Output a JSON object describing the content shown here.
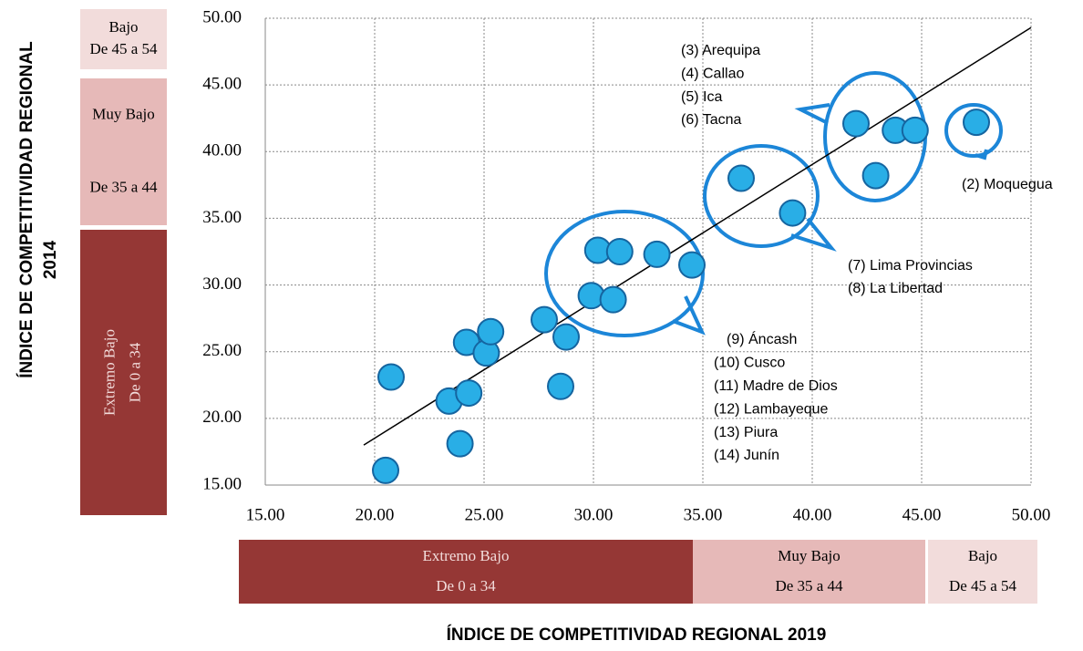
{
  "chart_data": {
    "type": "scatter",
    "x": [
      20.5,
      20.75,
      23.4,
      23.9,
      24.2,
      24.3,
      25.1,
      25.3,
      27.75,
      28.5,
      28.75,
      29.9,
      30.2,
      31.2,
      30.9,
      32.9,
      34.5,
      36.75,
      39.1,
      42.0,
      42.9,
      43.8,
      44.7,
      47.5
    ],
    "y": [
      16.1,
      23.1,
      21.3,
      18.1,
      25.7,
      21.9,
      24.9,
      26.5,
      27.4,
      22.4,
      26.1,
      29.2,
      32.6,
      32.5,
      28.9,
      32.3,
      31.5,
      38.0,
      35.4,
      42.1,
      38.2,
      41.6,
      41.6,
      42.2
    ],
    "color": "#29aee6",
    "trendline": {
      "x": [
        19.5,
        50
      ],
      "y": [
        18.0,
        49.3
      ]
    },
    "xlim": [
      15,
      50
    ],
    "ylim": [
      15,
      50
    ],
    "xticks": [
      {
        "value": 15,
        "label": "15.00"
      },
      {
        "value": 20,
        "label": "20.00"
      },
      {
        "value": 25,
        "label": "25.00"
      },
      {
        "value": 30,
        "label": "30.00"
      },
      {
        "value": 35,
        "label": "35.00"
      },
      {
        "value": 40,
        "label": "40.00"
      },
      {
        "value": 45,
        "label": "45.00"
      },
      {
        "value": 50,
        "label": "50.00"
      }
    ],
    "yticks": [
      {
        "value": 15,
        "label": "15.00"
      },
      {
        "value": 20,
        "label": "20.00"
      },
      {
        "value": 25,
        "label": "25.00"
      },
      {
        "value": 30,
        "label": "30.00"
      },
      {
        "value": 35,
        "label": "35.00"
      },
      {
        "value": 40,
        "label": "40.00"
      },
      {
        "value": 45,
        "label": "45.00"
      },
      {
        "value": 50,
        "label": "50.00"
      }
    ],
    "grid": true,
    "xlabel": "ÍNDICE DE COMPETITIVIDAD REGIONAL 2019",
    "ylabel": [
      "ÍNDICE DE COMPETITIVIDAD REGIONAL",
      "2014"
    ],
    "annotations": [
      [
        "(3) Arequipa",
        "(4) Callao",
        "(5) Ica",
        "(6) Tacna"
      ],
      [
        "(7) Lima Provincias",
        "(8) La Libertad"
      ],
      [
        "(9) Áncash",
        "(10) Cusco",
        "(11) Madre de Dios",
        "(12) Lambayeque",
        "(13) Piura",
        "(14) Junín"
      ],
      [
        "(2) Moquegua"
      ]
    ],
    "y_bands": [
      {
        "label": "Bajo",
        "range": "De 45 a 54"
      },
      {
        "label": "Muy Bajo",
        "range": "De 35 a 44"
      },
      {
        "label": "Extremo Bajo",
        "range": "De 0 a 34"
      }
    ],
    "x_bands": [
      {
        "label": "Extremo Bajo",
        "range": "De 0 a 34"
      },
      {
        "label": "Muy Bajo",
        "range": "De 35 a 44"
      },
      {
        "label": "Bajo",
        "range": "De 45 a 54"
      }
    ]
  }
}
